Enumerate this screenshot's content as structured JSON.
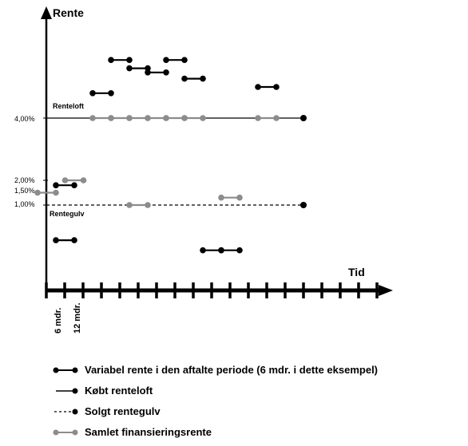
{
  "axes": {
    "y_label": "Rente",
    "x_label": "Tid",
    "y_ticks": [
      "4,00%",
      "2,00%",
      "1,50%",
      "1,00%"
    ],
    "x_ticks": [
      "6 mdr.",
      "12 mdr."
    ]
  },
  "annotations": {
    "cap": "Renteloft",
    "floor": "Rentegulv"
  },
  "legend": [
    {
      "style": "dot-dot-black",
      "label": "Variabel rente i den aftalte periode (6 mdr. i dette eksempel)"
    },
    {
      "style": "line-dot-black",
      "label": "Købt renteloft"
    },
    {
      "style": "dash-dot-black",
      "label": "Solgt rentegulv"
    },
    {
      "style": "dot-dot-grey",
      "label": "Samlet finansieringsrente"
    }
  ],
  "chart_data": {
    "type": "line",
    "y_unit": "%",
    "period": "6 mdr.",
    "periods_shown": 18,
    "cap_rate": 4.0,
    "floor_rate": 1.0,
    "series": [
      {
        "name": "Variabel rente i den aftalte periode (6 mdr. i dette eksempel)",
        "values": [
          0.3,
          1.8,
          4.6,
          5.4,
          5.2,
          5.1,
          5.4,
          4.95,
          null,
          null,
          0.1,
          0.1,
          4.75,
          null,
          null,
          null,
          null,
          null
        ]
      },
      {
        "name": "Samlet finansieringsrente",
        "values": [
          1.5,
          2.0,
          4.0,
          4.0,
          4.0,
          4.0,
          4.0,
          4.0,
          null,
          null,
          1.0,
          1.3,
          4.0,
          null,
          null,
          null,
          null,
          null
        ]
      }
    ],
    "colors": {
      "variable": "#000000",
      "combined": "#8c8c8c",
      "axis": "#000000"
    }
  }
}
